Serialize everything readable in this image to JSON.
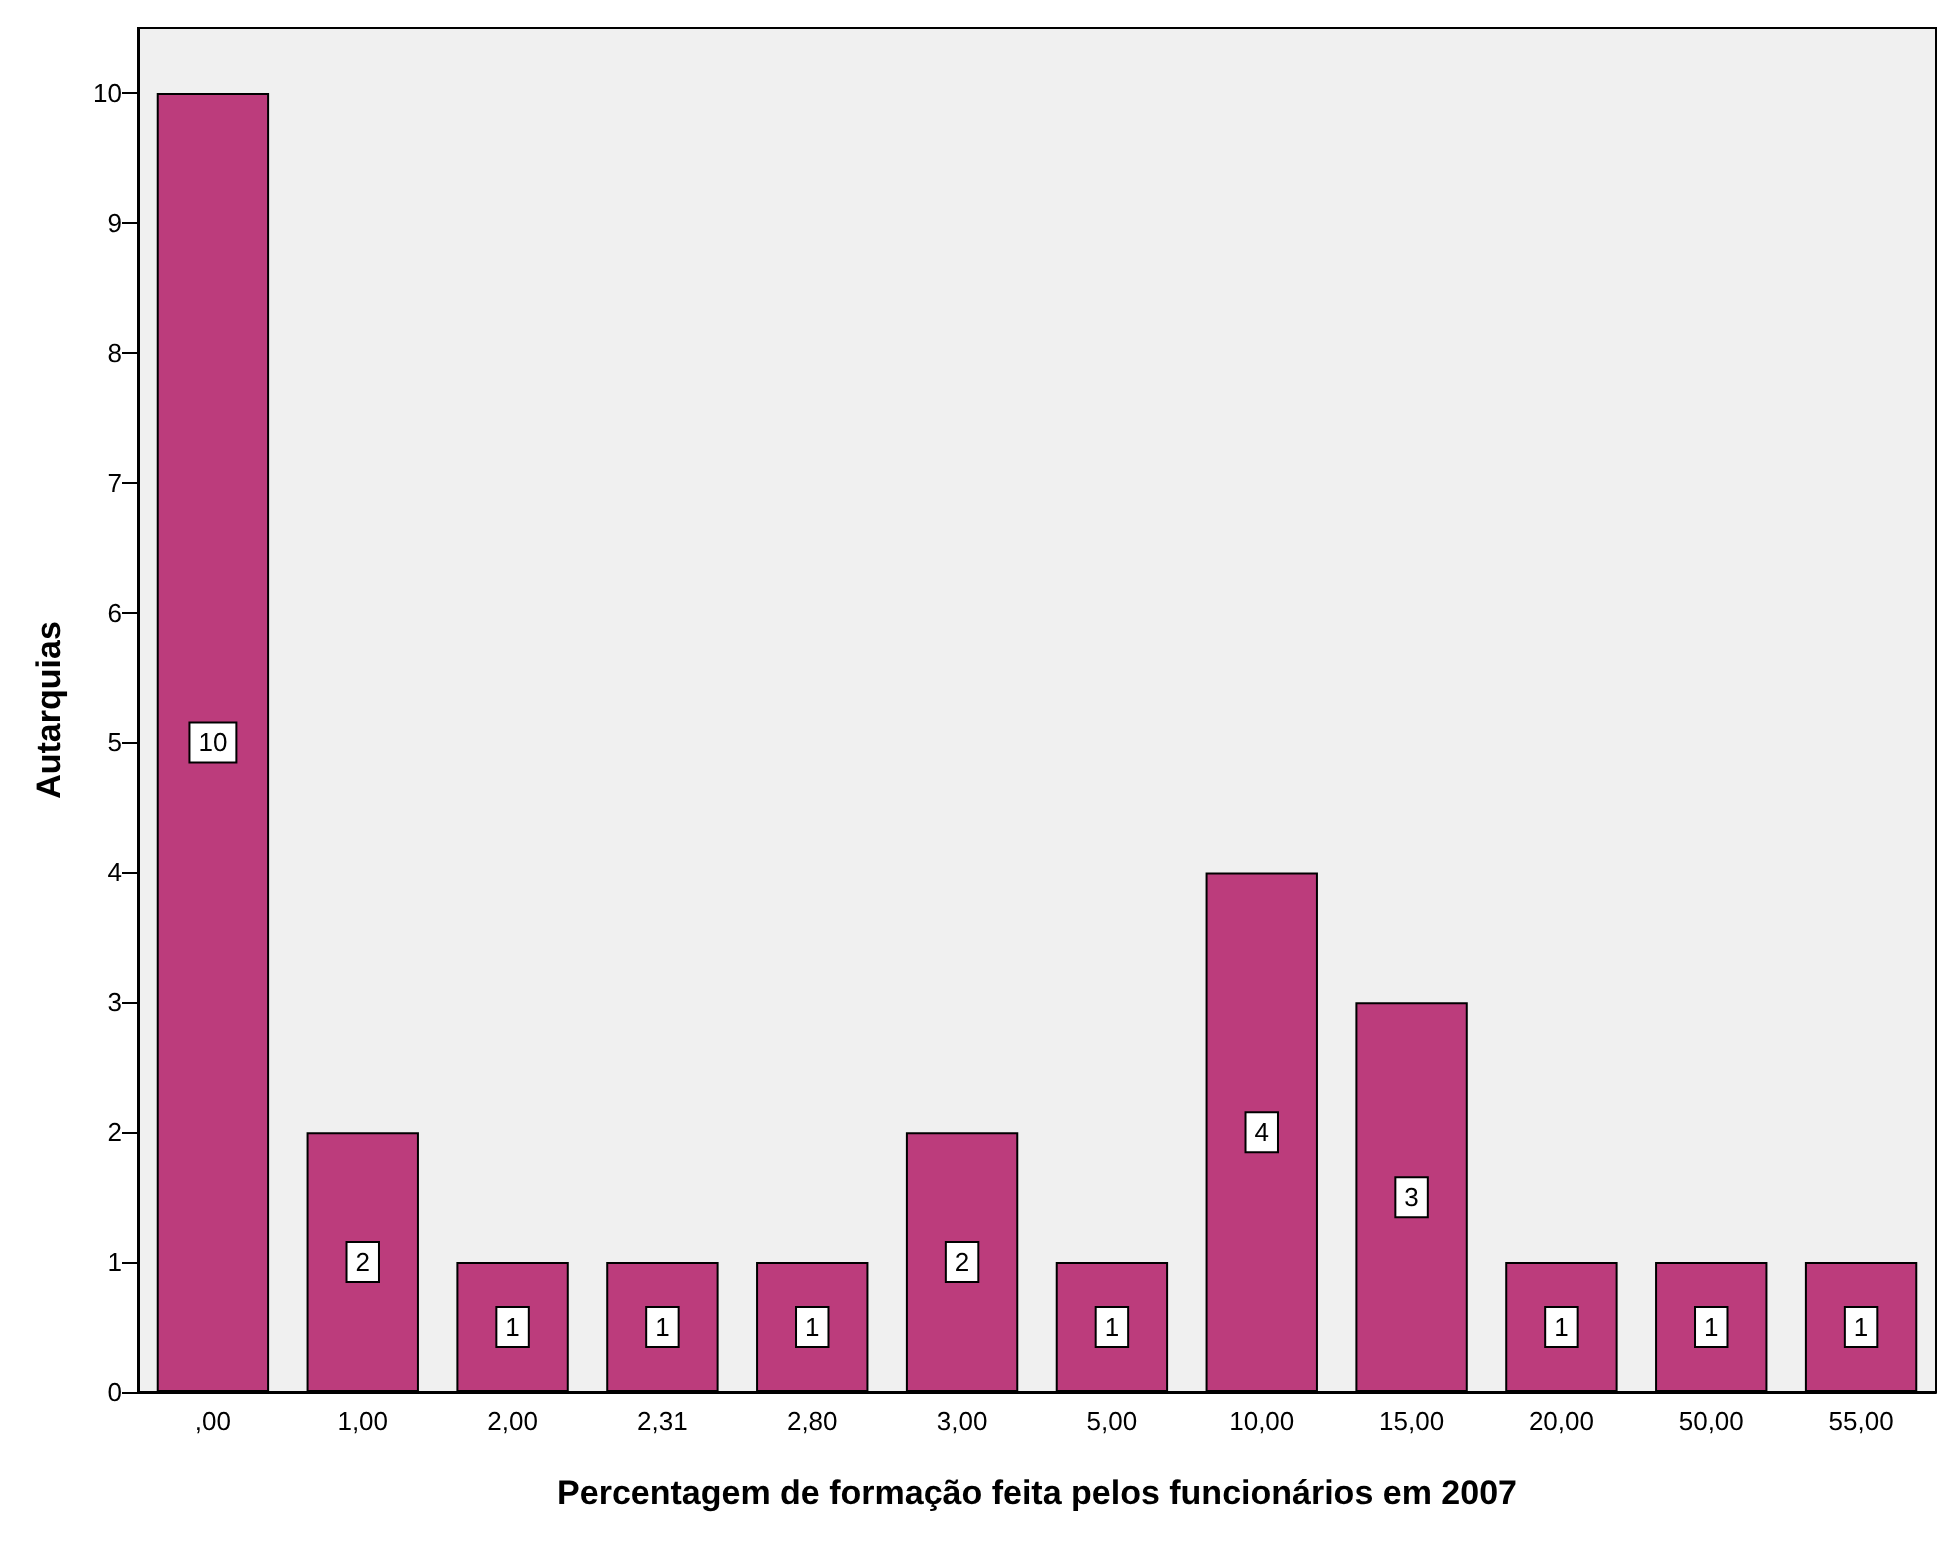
{
  "chart_data": {
    "type": "bar",
    "xlabel": "Percentagem de formação feita pelos funcionários em 2007",
    "ylabel": "Autarquias",
    "categories": [
      ",00",
      "1,00",
      "2,00",
      "2,31",
      "2,80",
      "3,00",
      "5,00",
      "10,00",
      "15,00",
      "20,00",
      "50,00",
      "55,00"
    ],
    "values": [
      10,
      2,
      1,
      1,
      1,
      2,
      1,
      4,
      3,
      1,
      1,
      1
    ],
    "color": "#bc3c7c",
    "ylim": [
      0,
      10.5
    ],
    "yticks": [
      0,
      1,
      2,
      3,
      4,
      5,
      6,
      7,
      8,
      9,
      10
    ],
    "grid": false,
    "data_labels": true
  }
}
